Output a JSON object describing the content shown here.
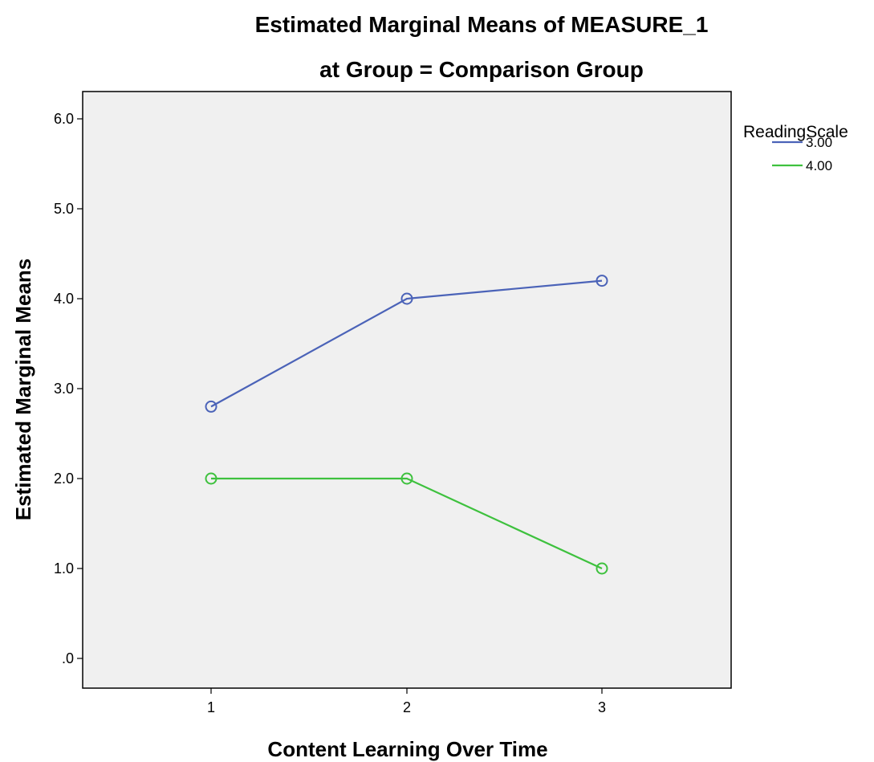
{
  "chart_data": {
    "type": "line",
    "title": "Estimated Marginal Means of MEASURE_1",
    "subtitle": "at Group = Comparison Group",
    "xlabel": "Content Learning Over Time",
    "ylabel": "Estimated Marginal Means",
    "categories": [
      "1",
      "2",
      "3"
    ],
    "ylim": [
      0,
      6.0
    ],
    "y_ticks": [
      {
        "value": 0,
        "label": ".0"
      },
      {
        "value": 1,
        "label": "1.0"
      },
      {
        "value": 2,
        "label": "2.0"
      },
      {
        "value": 3,
        "label": "3.0"
      },
      {
        "value": 4,
        "label": "4.0"
      },
      {
        "value": 5,
        "label": "5.0"
      },
      {
        "value": 6,
        "label": "6.0"
      }
    ],
    "grid": false,
    "legend": {
      "title": "ReadingScale",
      "position": "right"
    },
    "plot_background": "#f0f0f0",
    "series": [
      {
        "name": "3.00",
        "color": "#4b63b8",
        "values": [
          2.8,
          4.0,
          4.2
        ]
      },
      {
        "name": "4.00",
        "color": "#3ec13e",
        "values": [
          2.0,
          2.0,
          1.0
        ]
      }
    ]
  }
}
